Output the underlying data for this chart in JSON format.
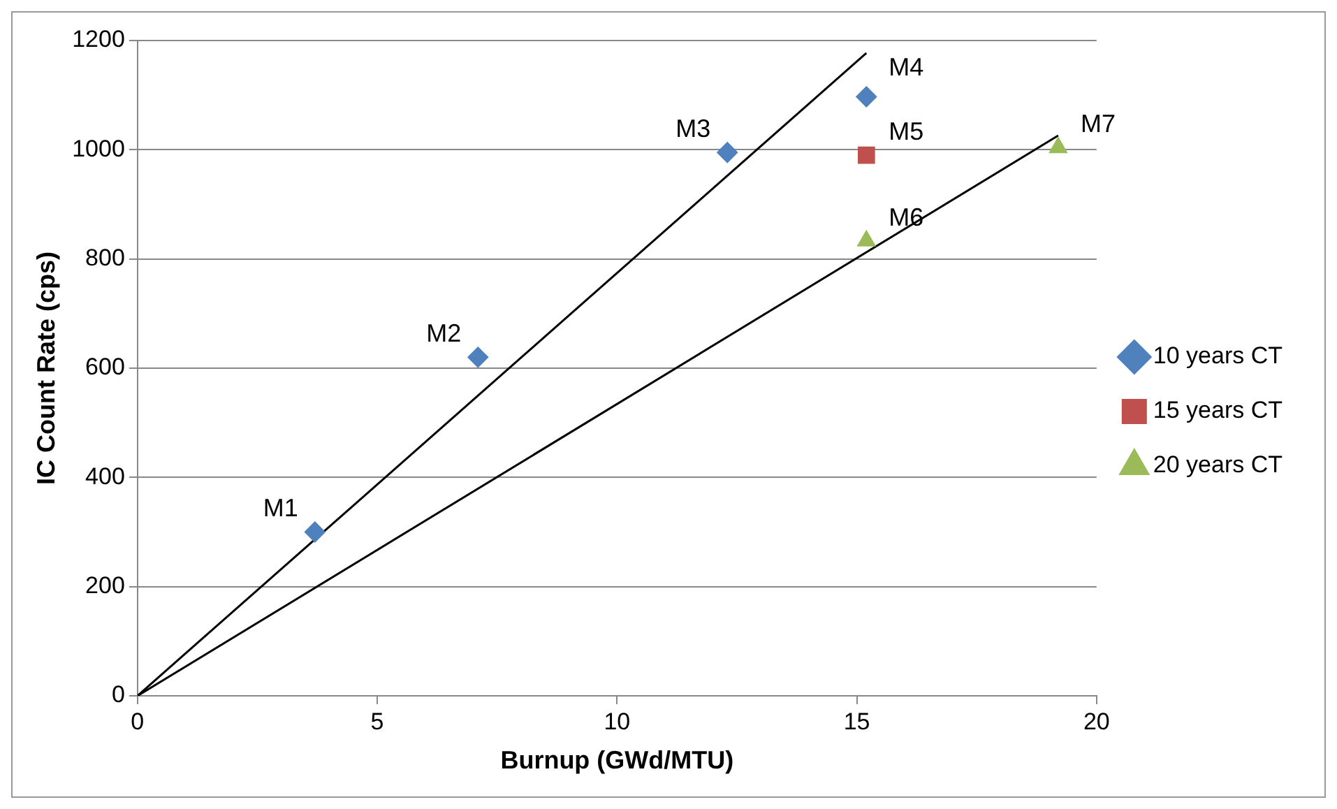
{
  "chart_data": {
    "type": "scatter",
    "xlabel": "Burnup (GWd/MTU)",
    "ylabel": "IC Count Rate (cps)",
    "xlim": [
      0,
      20
    ],
    "xticks": [
      0,
      5,
      10,
      15,
      20
    ],
    "ylim": [
      0,
      1200
    ],
    "yticks": [
      0,
      200,
      400,
      600,
      800,
      1000,
      1200
    ],
    "grid": "y",
    "legend": "right",
    "series": [
      {
        "name": "10 years CT",
        "color": "#4f81bd",
        "marker": "diamond",
        "x": [
          3.7,
          7.1,
          12.3,
          15.2
        ],
        "values": [
          300,
          620,
          995,
          1097
        ]
      },
      {
        "name": "15 years CT",
        "color": "#c0504d",
        "marker": "square",
        "x": [
          15.2
        ],
        "values": [
          990
        ]
      },
      {
        "name": "20 years CT",
        "color": "#9bbb59",
        "marker": "triangle",
        "x": [
          15.2,
          19.2
        ],
        "values": [
          833,
          1004
        ]
      },
      {
        "type": "line",
        "color": "#000000",
        "marker": "none",
        "x": [
          0,
          15.2
        ],
        "values": [
          0,
          1177
        ]
      },
      {
        "type": "line",
        "color": "#000000",
        "marker": "none",
        "x": [
          0,
          19.2
        ],
        "values": [
          0,
          1026
        ]
      }
    ],
    "annotations": [
      {
        "text": "M1",
        "x": 3.7,
        "y": 300
      },
      {
        "text": "M2",
        "x": 7.1,
        "y": 620
      },
      {
        "text": "M3",
        "x": 12.3,
        "y": 995
      },
      {
        "text": "M4",
        "x": 15.2,
        "y": 1097
      },
      {
        "text": "M5",
        "x": 15.2,
        "y": 990
      },
      {
        "text": "M6",
        "x": 15.2,
        "y": 833
      },
      {
        "text": "M7",
        "x": 19.2,
        "y": 1004
      }
    ]
  }
}
